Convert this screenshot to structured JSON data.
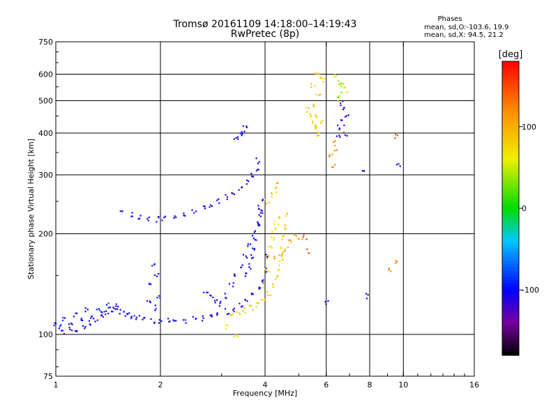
{
  "header": {
    "title_line1": "Tromsø 20161109 14:18:00–14:19:43",
    "title_line2": "RwPretec (8p)"
  },
  "phases_box": {
    "title": "Phases",
    "line1": "mean, sd,O:-103.6, 19.9",
    "line2": "mean, sd,X:  94.5, 21.2"
  },
  "colorbar": {
    "label": "[deg]",
    "ticks": [
      {
        "value": 100,
        "label": "100"
      },
      {
        "value": 0,
        "label": "0"
      },
      {
        "value": -100,
        "label": "-100"
      }
    ],
    "range": [
      -180,
      180
    ]
  },
  "chart_data": {
    "type": "scatter",
    "title": "Tromsø 20161109 14:18:00–14:19:43",
    "subtitle": "RwPretec (8p)",
    "xlabel": "Frequency [MHz]",
    "ylabel": "Stationary phase Virtual Height [km]",
    "xscale": "log",
    "yscale": "log",
    "xlim": [
      1,
      16
    ],
    "ylim": [
      75,
      750
    ],
    "x_ticks": [
      {
        "value": 1,
        "label": "1"
      },
      {
        "value": 2,
        "label": "2"
      },
      {
        "value": 4,
        "label": "4"
      },
      {
        "value": 6,
        "label": "6"
      },
      {
        "value": 8,
        "label": "8"
      },
      {
        "value": 10,
        "label": "10"
      },
      {
        "value": 16,
        "label": "16"
      }
    ],
    "y_ticks": [
      {
        "value": 75,
        "label": "75"
      },
      {
        "value": 100,
        "label": "100"
      },
      {
        "value": 200,
        "label": "200"
      },
      {
        "value": 300,
        "label": "300"
      },
      {
        "value": 400,
        "label": "400"
      },
      {
        "value": 500,
        "label": "500"
      },
      {
        "value": 600,
        "label": "600"
      },
      {
        "value": 750,
        "label": "750"
      }
    ],
    "x_grid": [
      2,
      4,
      6,
      8,
      10
    ],
    "y_grid": [
      100,
      200,
      300,
      400,
      500,
      600
    ],
    "color_by": "phase (deg)",
    "traces": [
      {
        "points": [
          [
            1.0,
            108
          ],
          [
            1.03,
            105
          ],
          [
            1.06,
            112
          ],
          [
            1.1,
            107
          ],
          [
            1.14,
            115
          ],
          [
            1.18,
            110
          ],
          [
            1.22,
            118
          ],
          [
            1.27,
            113
          ],
          [
            1.32,
            120
          ],
          [
            1.37,
            116
          ],
          [
            1.42,
            122
          ],
          [
            1.47,
            118
          ],
          [
            1.52,
            117
          ],
          [
            1.57,
            115
          ],
          [
            1.62,
            114
          ],
          [
            1.67,
            113
          ]
        ],
        "phase": -95
      },
      {
        "points": [
          [
            1.05,
            101
          ],
          [
            1.1,
            103
          ],
          [
            1.15,
            104
          ],
          [
            1.2,
            106
          ],
          [
            1.25,
            108
          ],
          [
            1.3,
            111
          ],
          [
            1.35,
            113
          ],
          [
            1.4,
            116
          ],
          [
            1.45,
            119
          ],
          [
            1.5,
            121
          ]
        ],
        "phase": -110
      },
      {
        "points": [
          [
            1.72,
            112
          ],
          [
            1.8,
            111
          ],
          [
            1.9,
            110
          ],
          [
            2.0,
            110
          ],
          [
            2.1,
            110
          ],
          [
            2.2,
            110
          ],
          [
            2.35,
            110
          ],
          [
            2.5,
            111
          ],
          [
            2.65,
            112
          ],
          [
            2.8,
            113
          ],
          [
            2.95,
            115
          ],
          [
            3.1,
            117
          ],
          [
            3.25,
            119
          ],
          [
            3.4,
            122
          ],
          [
            3.55,
            126
          ],
          [
            3.7,
            131
          ],
          [
            3.85,
            137
          ],
          [
            3.95,
            145
          ],
          [
            4.0,
            155
          ],
          [
            4.05,
            170
          ]
        ],
        "phase": -105
      },
      {
        "points": [
          [
            2.7,
            135
          ],
          [
            2.8,
            130
          ],
          [
            2.9,
            126
          ],
          [
            3.0,
            124
          ],
          [
            3.1,
            130
          ],
          [
            3.2,
            140
          ],
          [
            3.3,
            150
          ],
          [
            3.4,
            160
          ],
          [
            3.5,
            172
          ],
          [
            3.6,
            185
          ],
          [
            3.7,
            200
          ],
          [
            3.8,
            215
          ],
          [
            3.9,
            235
          ],
          [
            3.97,
            250
          ]
        ],
        "phase": -112
      },
      {
        "points": [
          [
            3.55,
            150
          ],
          [
            3.6,
            160
          ],
          [
            3.65,
            170
          ],
          [
            3.7,
            182
          ],
          [
            3.75,
            195
          ],
          [
            3.8,
            210
          ],
          [
            3.85,
            228
          ],
          [
            3.88,
            240
          ]
        ],
        "phase": -100
      },
      {
        "points": [
          [
            1.85,
            125
          ],
          [
            1.88,
            140
          ],
          [
            1.9,
            160
          ],
          [
            1.95,
            150
          ],
          [
            1.98,
            130
          ],
          [
            1.92,
            120
          ]
        ],
        "phase": -95
      },
      {
        "points": [
          [
            1.55,
            232
          ],
          [
            1.65,
            228
          ],
          [
            1.75,
            224
          ],
          [
            1.85,
            222
          ],
          [
            1.95,
            221
          ],
          [
            2.05,
            222
          ],
          [
            2.2,
            224
          ],
          [
            2.35,
            228
          ],
          [
            2.5,
            233
          ],
          [
            2.65,
            238
          ],
          [
            2.8,
            244
          ],
          [
            2.95,
            251
          ],
          [
            3.1,
            258
          ],
          [
            3.25,
            266
          ],
          [
            3.4,
            275
          ],
          [
            3.55,
            286
          ],
          [
            3.7,
            300
          ],
          [
            3.78,
            315
          ],
          [
            3.82,
            330
          ]
        ],
        "phase": -110
      },
      {
        "points": [
          [
            3.3,
            380
          ],
          [
            3.38,
            392
          ],
          [
            3.45,
            405
          ],
          [
            3.5,
            412
          ]
        ],
        "phase": -110
      },
      {
        "points": [
          [
            3.2,
            116
          ],
          [
            3.35,
            117
          ],
          [
            3.5,
            118
          ],
          [
            3.65,
            120
          ],
          [
            3.8,
            123
          ],
          [
            3.95,
            127
          ],
          [
            4.1,
            133
          ],
          [
            4.2,
            140
          ],
          [
            4.3,
            148
          ],
          [
            4.4,
            158
          ],
          [
            4.45,
            168
          ],
          [
            4.5,
            180
          ],
          [
            4.52,
            195
          ],
          [
            4.55,
            210
          ],
          [
            4.6,
            230
          ]
        ],
        "phase": 85
      },
      {
        "points": [
          [
            4.0,
            140
          ],
          [
            4.05,
            155
          ],
          [
            4.1,
            170
          ],
          [
            4.15,
            185
          ],
          [
            4.2,
            195
          ],
          [
            4.25,
            205
          ],
          [
            4.3,
            215
          ],
          [
            4.35,
            225
          ]
        ],
        "phase": 70
      },
      {
        "points": [
          [
            4.3,
            170
          ],
          [
            4.45,
            175
          ],
          [
            4.6,
            180
          ],
          [
            4.75,
            188
          ],
          [
            4.9,
            198
          ],
          [
            5.05,
            190
          ]
        ],
        "phase": 110
      },
      {
        "points": [
          [
            4.05,
            250
          ],
          [
            4.15,
            260
          ],
          [
            4.25,
            270
          ],
          [
            4.35,
            280
          ]
        ],
        "phase": 90
      },
      {
        "points": [
          [
            5.6,
            600
          ],
          [
            5.75,
            590
          ],
          [
            5.9,
            580
          ],
          [
            5.5,
            560
          ],
          [
            5.7,
            520
          ],
          [
            5.55,
            480
          ],
          [
            5.65,
            450
          ],
          [
            5.8,
            430
          ],
          [
            5.6,
            410
          ],
          [
            5.7,
            395
          ]
        ],
        "phase": 85
      },
      {
        "points": [
          [
            5.3,
            470
          ],
          [
            5.4,
            450
          ],
          [
            5.5,
            430
          ],
          [
            5.6,
            420
          ]
        ],
        "phase": 80
      },
      {
        "points": [
          [
            6.4,
            590
          ],
          [
            6.55,
            570
          ],
          [
            6.7,
            555
          ],
          [
            6.85,
            540
          ],
          [
            6.6,
            520
          ],
          [
            6.45,
            505
          ]
        ],
        "phase": 40
      },
      {
        "points": [
          [
            6.6,
            490
          ],
          [
            6.75,
            470
          ],
          [
            6.9,
            450
          ],
          [
            6.7,
            430
          ],
          [
            6.55,
            415
          ],
          [
            6.8,
            400
          ],
          [
            6.5,
            395
          ]
        ],
        "phase": -110
      },
      {
        "points": [
          [
            6.3,
            380
          ],
          [
            6.4,
            360
          ],
          [
            6.2,
            340
          ],
          [
            6.3,
            320
          ]
        ],
        "phase": 120
      },
      {
        "points": [
          [
            9.5,
            390
          ]
        ],
        "phase": 140
      },
      {
        "points": [
          [
            7.7,
            310
          ]
        ],
        "phase": -110
      },
      {
        "points": [
          [
            9.7,
            320
          ]
        ],
        "phase": -110
      },
      {
        "points": [
          [
            9.5,
            165
          ],
          [
            9.2,
            155
          ]
        ],
        "phase": 120
      },
      {
        "points": [
          [
            7.8,
            130
          ],
          [
            6.0,
            125
          ]
        ],
        "phase": -110
      },
      {
        "points": [
          [
            3.3,
            100
          ],
          [
            3.1,
            105
          ]
        ],
        "phase": 60
      },
      {
        "points": [
          [
            5.2,
            195
          ],
          [
            5.35,
            178
          ]
        ],
        "phase": 150
      }
    ]
  }
}
